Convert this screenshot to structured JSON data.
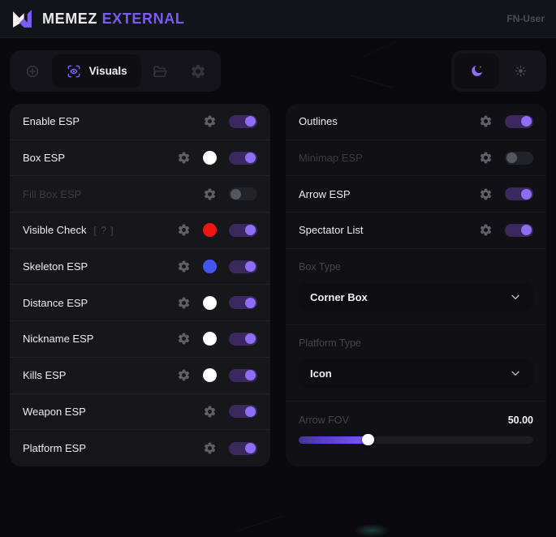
{
  "header": {
    "brand": "MEMEZ",
    "brand_accent": "EXTERNAL",
    "user": "FN-User"
  },
  "toolbar": {
    "tabs": [
      {
        "icon": "crosshair-target-icon",
        "label": "",
        "active": false
      },
      {
        "icon": "eye-scan-icon",
        "label": "Visuals",
        "active": true
      },
      {
        "icon": "folder-icon",
        "label": "",
        "active": false
      },
      {
        "icon": "gear-icon",
        "label": "",
        "active": false
      }
    ],
    "theme": {
      "options": [
        {
          "icon": "moon-icon",
          "active": true
        },
        {
          "icon": "sun-icon",
          "active": false
        }
      ]
    }
  },
  "left_panel": {
    "items": [
      {
        "type": "toggle",
        "label": "Enable ESP",
        "state": "on"
      },
      {
        "type": "toggle",
        "label": "Box ESP",
        "swatch": "#ffffff",
        "state": "on"
      },
      {
        "type": "toggle",
        "label": "Fill Box ESP",
        "state": "off",
        "disabled": true
      },
      {
        "type": "toggle",
        "label": "Visible Check",
        "hint": "[ ? ]",
        "swatch": "#f21414",
        "state": "on"
      },
      {
        "type": "toggle",
        "label": "Skeleton ESP",
        "swatch": "#4355f0",
        "state": "on"
      },
      {
        "type": "toggle",
        "label": "Distance ESP",
        "swatch": "#ffffff",
        "state": "on"
      },
      {
        "type": "toggle",
        "label": "Nickname ESP",
        "swatch": "#ffffff",
        "state": "on"
      },
      {
        "type": "toggle",
        "label": "Kills ESP",
        "swatch": "#ffffff",
        "state": "on"
      },
      {
        "type": "toggle",
        "label": "Weapon ESP",
        "state": "on"
      },
      {
        "type": "toggle",
        "label": "Platform ESP",
        "state": "on"
      }
    ]
  },
  "right_panel": {
    "items": [
      {
        "type": "toggle",
        "label": "Outlines",
        "gear": true,
        "state": "on"
      },
      {
        "type": "toggle",
        "label": "Minimap ESP",
        "state": "off",
        "disabled": true
      },
      {
        "type": "toggle",
        "label": "Arrow ESP",
        "state": "on"
      },
      {
        "type": "toggle",
        "label": "Spectator List",
        "state": "on"
      },
      {
        "type": "select",
        "label": "Box Type",
        "value": "Corner Box"
      },
      {
        "type": "select",
        "label": "Platform Type",
        "value": "Icon"
      },
      {
        "type": "slider",
        "label": "Arrow FOV",
        "value": "50.00",
        "percent": 29
      }
    ]
  },
  "colors": {
    "accent": "#7a5cf5",
    "toggle_track_on": "#39295f",
    "toggle_knob_on": "#8d6ef4",
    "panel_bg": "#16161b",
    "page_bg": "#0a0a0d"
  }
}
